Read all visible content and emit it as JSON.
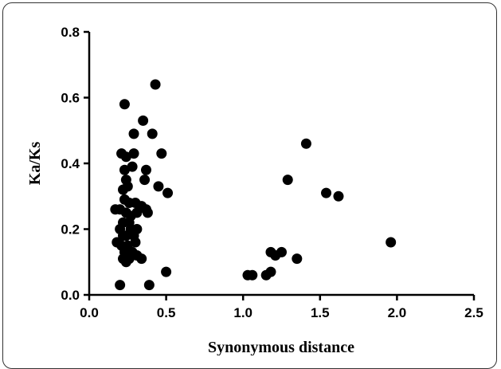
{
  "chart_data": {
    "type": "scatter",
    "title": "",
    "xlabel": "Synonymous distance",
    "ylabel": "Ka/Ks",
    "xlim": [
      0.0,
      2.5
    ],
    "ylim": [
      0.0,
      0.8
    ],
    "xticks": [
      "0.0",
      "0.5",
      "1.0",
      "1.5",
      "2.0",
      "2.5"
    ],
    "yticks": [
      "0.0",
      "0.2",
      "0.4",
      "0.6",
      "0.8"
    ],
    "grid": false,
    "marker_color": "#000000",
    "points": [
      {
        "x": 0.23,
        "y": 0.58
      },
      {
        "x": 0.43,
        "y": 0.64
      },
      {
        "x": 0.35,
        "y": 0.53
      },
      {
        "x": 0.29,
        "y": 0.49
      },
      {
        "x": 0.41,
        "y": 0.49
      },
      {
        "x": 0.21,
        "y": 0.43
      },
      {
        "x": 0.24,
        "y": 0.42
      },
      {
        "x": 0.29,
        "y": 0.43
      },
      {
        "x": 0.47,
        "y": 0.43
      },
      {
        "x": 0.23,
        "y": 0.38
      },
      {
        "x": 0.28,
        "y": 0.39
      },
      {
        "x": 0.37,
        "y": 0.38
      },
      {
        "x": 0.24,
        "y": 0.35
      },
      {
        "x": 0.36,
        "y": 0.35
      },
      {
        "x": 0.45,
        "y": 0.33
      },
      {
        "x": 0.25,
        "y": 0.33
      },
      {
        "x": 0.22,
        "y": 0.32
      },
      {
        "x": 0.51,
        "y": 0.31
      },
      {
        "x": 0.23,
        "y": 0.29
      },
      {
        "x": 0.26,
        "y": 0.28
      },
      {
        "x": 0.3,
        "y": 0.28
      },
      {
        "x": 0.17,
        "y": 0.26
      },
      {
        "x": 0.2,
        "y": 0.26
      },
      {
        "x": 0.34,
        "y": 0.27
      },
      {
        "x": 0.37,
        "y": 0.26
      },
      {
        "x": 0.24,
        "y": 0.25
      },
      {
        "x": 0.27,
        "y": 0.24
      },
      {
        "x": 0.31,
        "y": 0.25
      },
      {
        "x": 0.38,
        "y": 0.25
      },
      {
        "x": 0.22,
        "y": 0.22
      },
      {
        "x": 0.26,
        "y": 0.22
      },
      {
        "x": 0.2,
        "y": 0.2
      },
      {
        "x": 0.27,
        "y": 0.2
      },
      {
        "x": 0.31,
        "y": 0.2
      },
      {
        "x": 0.22,
        "y": 0.18
      },
      {
        "x": 0.24,
        "y": 0.18
      },
      {
        "x": 0.29,
        "y": 0.18
      },
      {
        "x": 0.18,
        "y": 0.16
      },
      {
        "x": 0.21,
        "y": 0.15
      },
      {
        "x": 0.25,
        "y": 0.15
      },
      {
        "x": 0.3,
        "y": 0.16
      },
      {
        "x": 0.23,
        "y": 0.13
      },
      {
        "x": 0.28,
        "y": 0.13
      },
      {
        "x": 0.31,
        "y": 0.12
      },
      {
        "x": 0.22,
        "y": 0.11
      },
      {
        "x": 0.26,
        "y": 0.11
      },
      {
        "x": 0.34,
        "y": 0.11
      },
      {
        "x": 0.24,
        "y": 0.1
      },
      {
        "x": 0.2,
        "y": 0.03
      },
      {
        "x": 0.39,
        "y": 0.03
      },
      {
        "x": 0.5,
        "y": 0.07
      },
      {
        "x": 1.03,
        "y": 0.06
      },
      {
        "x": 1.06,
        "y": 0.06
      },
      {
        "x": 1.15,
        "y": 0.06
      },
      {
        "x": 1.18,
        "y": 0.07
      },
      {
        "x": 1.18,
        "y": 0.13
      },
      {
        "x": 1.21,
        "y": 0.12
      },
      {
        "x": 1.25,
        "y": 0.13
      },
      {
        "x": 1.35,
        "y": 0.11
      },
      {
        "x": 1.29,
        "y": 0.35
      },
      {
        "x": 1.41,
        "y": 0.46
      },
      {
        "x": 1.54,
        "y": 0.31
      },
      {
        "x": 1.62,
        "y": 0.3
      },
      {
        "x": 1.96,
        "y": 0.16
      }
    ]
  }
}
